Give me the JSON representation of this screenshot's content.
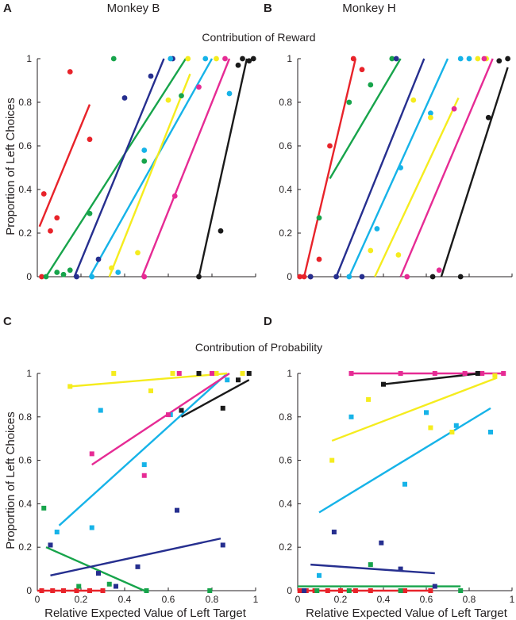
{
  "figure": {
    "panel_letters": [
      "A",
      "B",
      "C",
      "D"
    ],
    "monkey_titles": [
      "Monkey B",
      "Monkey H"
    ],
    "section_titles": [
      "Contribution of Reward",
      "Contribution of Probability"
    ],
    "ylabel": "Proportion of Left  Choices",
    "xlabel": "Relative Expected Value of Left Target",
    "yticks": [
      "0",
      "0.2",
      "0.4",
      "0.6",
      "0.8",
      "1"
    ],
    "xticks": [
      "0",
      "0.2",
      "0.4",
      "0.6",
      "0.8",
      "1"
    ],
    "colors": {
      "red": "#e8232a",
      "green": "#17a44b",
      "navy": "#262f8f",
      "cyan": "#16b3e8",
      "yellow": "#f5ec1e",
      "magenta": "#e62b94",
      "black": "#1a1a1a"
    }
  },
  "chart_data": [
    {
      "panel": "A",
      "type": "scatter",
      "marker": "circle",
      "title": "Monkey B",
      "xlim": [
        0,
        1
      ],
      "ylim": [
        0,
        1
      ],
      "series": [
        {
          "color": "red",
          "points": [
            [
              0.02,
              0
            ],
            [
              0.03,
              0.38
            ],
            [
              0.06,
              0.21
            ],
            [
              0.09,
              0.27
            ],
            [
              0.15,
              0.94
            ],
            [
              0.24,
              0.63
            ]
          ],
          "fit": [
            [
              0.01,
              0.23
            ],
            [
              0.24,
              0.79
            ]
          ]
        },
        {
          "color": "green",
          "points": [
            [
              0.04,
              0
            ],
            [
              0.09,
              0.02
            ],
            [
              0.12,
              0.01
            ],
            [
              0.15,
              0.03
            ],
            [
              0.24,
              0.29
            ],
            [
              0.35,
              1.0
            ],
            [
              0.49,
              0.53
            ],
            [
              0.66,
              0.83
            ]
          ],
          "fit": [
            [
              0.04,
              0
            ],
            [
              0.68,
              1.0
            ]
          ]
        },
        {
          "color": "navy",
          "points": [
            [
              0.18,
              0
            ],
            [
              0.28,
              0.08
            ],
            [
              0.4,
              0.82
            ],
            [
              0.52,
              0.92
            ],
            [
              0.62,
              1.0
            ]
          ],
          "fit": [
            [
              0.17,
              0
            ],
            [
              0.58,
              1.0
            ]
          ]
        },
        {
          "color": "cyan",
          "points": [
            [
              0.25,
              0
            ],
            [
              0.37,
              0.02
            ],
            [
              0.49,
              0.58
            ],
            [
              0.61,
              1.0
            ],
            [
              0.77,
              1.0
            ],
            [
              0.88,
              0.84
            ]
          ],
          "fit": [
            [
              0.24,
              0
            ],
            [
              0.8,
              1.0
            ]
          ]
        },
        {
          "color": "yellow",
          "points": [
            [
              0.34,
              0.04
            ],
            [
              0.46,
              0.11
            ],
            [
              0.6,
              0.81
            ],
            [
              0.69,
              1.0
            ],
            [
              0.82,
              1.0
            ]
          ],
          "fit": [
            [
              0.33,
              0
            ],
            [
              0.7,
              0.93
            ]
          ]
        },
        {
          "color": "magenta",
          "points": [
            [
              0.49,
              0
            ],
            [
              0.63,
              0.37
            ],
            [
              0.74,
              0.87
            ],
            [
              0.86,
              1.0
            ]
          ],
          "fit": [
            [
              0.48,
              0
            ],
            [
              0.88,
              1.0
            ]
          ]
        },
        {
          "color": "black",
          "points": [
            [
              0.74,
              0
            ],
            [
              0.84,
              0.21
            ],
            [
              0.92,
              0.97
            ],
            [
              0.94,
              1.0
            ],
            [
              0.97,
              0.99
            ],
            [
              0.99,
              1.0
            ]
          ],
          "fit": [
            [
              0.74,
              0
            ],
            [
              0.96,
              1.0
            ]
          ]
        }
      ]
    },
    {
      "panel": "B",
      "type": "scatter",
      "marker": "circle",
      "title": "Monkey H",
      "xlim": [
        0,
        1
      ],
      "ylim": [
        0,
        1
      ],
      "series": [
        {
          "color": "red",
          "points": [
            [
              0.01,
              0
            ],
            [
              0.03,
              0
            ],
            [
              0.06,
              0
            ],
            [
              0.1,
              0.08
            ],
            [
              0.15,
              0.6
            ],
            [
              0.26,
              1.0
            ],
            [
              0.3,
              0.95
            ]
          ],
          "fit": [
            [
              0.03,
              0
            ],
            [
              0.27,
              1.0
            ]
          ]
        },
        {
          "color": "green",
          "points": [
            [
              0.1,
              0.27
            ],
            [
              0.24,
              0.8
            ],
            [
              0.34,
              0.88
            ],
            [
              0.44,
              1.0
            ]
          ],
          "fit": [
            [
              0.15,
              0.45
            ],
            [
              0.48,
              1.0
            ]
          ]
        },
        {
          "color": "navy",
          "points": [
            [
              0.06,
              0
            ],
            [
              0.18,
              0
            ],
            [
              0.3,
              0
            ],
            [
              0.46,
              1.0
            ]
          ],
          "fit": [
            [
              0.18,
              0
            ],
            [
              0.59,
              1.0
            ]
          ]
        },
        {
          "color": "cyan",
          "points": [
            [
              0.24,
              0
            ],
            [
              0.37,
              0.22
            ],
            [
              0.48,
              0.5
            ],
            [
              0.62,
              0.75
            ],
            [
              0.76,
              1.0
            ],
            [
              0.8,
              1.0
            ]
          ],
          "fit": [
            [
              0.24,
              0
            ],
            [
              0.7,
              1.0
            ]
          ]
        },
        {
          "color": "yellow",
          "points": [
            [
              0.34,
              0.12
            ],
            [
              0.47,
              0.1
            ],
            [
              0.54,
              0.81
            ],
            [
              0.62,
              0.73
            ],
            [
              0.84,
              1.0
            ],
            [
              0.88,
              1.0
            ]
          ],
          "fit": [
            [
              0.36,
              0
            ],
            [
              0.75,
              0.82
            ]
          ]
        },
        {
          "color": "magenta",
          "points": [
            [
              0.51,
              0
            ],
            [
              0.66,
              0.03
            ],
            [
              0.73,
              0.77
            ],
            [
              0.87,
              1.0
            ]
          ],
          "fit": [
            [
              0.48,
              0
            ],
            [
              0.91,
              1.0
            ]
          ]
        },
        {
          "color": "black",
          "points": [
            [
              0.63,
              0
            ],
            [
              0.76,
              0
            ],
            [
              0.89,
              0.73
            ],
            [
              0.94,
              0.99
            ],
            [
              0.98,
              1.0
            ]
          ],
          "fit": [
            [
              0.67,
              0
            ],
            [
              0.98,
              0.96
            ]
          ]
        }
      ]
    },
    {
      "panel": "C",
      "type": "scatter",
      "marker": "square",
      "xlim": [
        0,
        1
      ],
      "ylim": [
        0,
        1
      ],
      "series": [
        {
          "color": "red",
          "points": [
            [
              0.02,
              0
            ],
            [
              0.07,
              0
            ],
            [
              0.12,
              0
            ],
            [
              0.18,
              0
            ],
            [
              0.24,
              0
            ],
            [
              0.3,
              0
            ]
          ],
          "fit": [
            [
              0.0,
              0.0
            ],
            [
              0.3,
              0.0
            ]
          ]
        },
        {
          "color": "green",
          "points": [
            [
              0.03,
              0.38
            ],
            [
              0.06,
              0.21
            ],
            [
              0.19,
              0.02
            ],
            [
              0.33,
              0.03
            ],
            [
              0.5,
              0
            ],
            [
              0.79,
              0
            ]
          ],
          "fit": [
            [
              0.04,
              0.2
            ],
            [
              0.49,
              0.0
            ]
          ]
        },
        {
          "color": "navy",
          "points": [
            [
              0.06,
              0.21
            ],
            [
              0.28,
              0.08
            ],
            [
              0.36,
              0.02
            ],
            [
              0.46,
              0.11
            ],
            [
              0.64,
              0.37
            ],
            [
              0.85,
              0.21
            ]
          ],
          "fit": [
            [
              0.06,
              0.07
            ],
            [
              0.84,
              0.24
            ]
          ]
        },
        {
          "color": "cyan",
          "points": [
            [
              0.09,
              0.27
            ],
            [
              0.25,
              0.29
            ],
            [
              0.29,
              0.83
            ],
            [
              0.49,
              0.58
            ],
            [
              0.61,
              0.81
            ],
            [
              0.87,
              0.97
            ]
          ],
          "fit": [
            [
              0.1,
              0.3
            ],
            [
              0.87,
              1.0
            ]
          ]
        },
        {
          "color": "yellow",
          "points": [
            [
              0.15,
              0.94
            ],
            [
              0.35,
              1.0
            ],
            [
              0.52,
              0.92
            ],
            [
              0.62,
              1.0
            ],
            [
              0.82,
              1.0
            ],
            [
              0.94,
              1.0
            ]
          ],
          "fit": [
            [
              0.15,
              0.94
            ],
            [
              0.87,
              1.0
            ]
          ]
        },
        {
          "color": "magenta",
          "points": [
            [
              0.25,
              0.63
            ],
            [
              0.49,
              0.53
            ],
            [
              0.6,
              0.81
            ],
            [
              0.65,
              1.0
            ],
            [
              0.8,
              1.0
            ]
          ],
          "fit": [
            [
              0.25,
              0.58
            ],
            [
              0.88,
              1.0
            ]
          ]
        },
        {
          "color": "black",
          "points": [
            [
              0.66,
              0.83
            ],
            [
              0.74,
              1.0
            ],
            [
              0.85,
              0.84
            ],
            [
              0.92,
              0.97
            ],
            [
              0.97,
              1.0
            ]
          ],
          "fit": [
            [
              0.66,
              0.8
            ],
            [
              0.97,
              0.97
            ]
          ]
        }
      ]
    },
    {
      "panel": "D",
      "type": "scatter",
      "marker": "square",
      "xlim": [
        0,
        1
      ],
      "ylim": [
        0,
        1
      ],
      "series": [
        {
          "color": "red",
          "points": [
            [
              0.01,
              0
            ],
            [
              0.04,
              0
            ],
            [
              0.08,
              0
            ],
            [
              0.14,
              0
            ],
            [
              0.2,
              0
            ],
            [
              0.27,
              0
            ],
            [
              0.34,
              0
            ],
            [
              0.5,
              0
            ],
            [
              0.62,
              0
            ]
          ],
          "fit": [
            [
              0.0,
              0.0
            ],
            [
              0.62,
              0.0
            ]
          ]
        },
        {
          "color": "green",
          "points": [
            [
              0.09,
              0
            ],
            [
              0.24,
              0
            ],
            [
              0.34,
              0.12
            ],
            [
              0.48,
              0
            ],
            [
              0.76,
              0
            ]
          ],
          "fit": [
            [
              0.0,
              0.02
            ],
            [
              0.76,
              0.02
            ]
          ]
        },
        {
          "color": "navy",
          "points": [
            [
              0.03,
              0
            ],
            [
              0.17,
              0.27
            ],
            [
              0.39,
              0.22
            ],
            [
              0.48,
              0.1
            ],
            [
              0.64,
              0.02
            ]
          ],
          "fit": [
            [
              0.06,
              0.12
            ],
            [
              0.64,
              0.08
            ]
          ]
        },
        {
          "color": "cyan",
          "points": [
            [
              0.1,
              0.07
            ],
            [
              0.25,
              0.8
            ],
            [
              0.5,
              0.49
            ],
            [
              0.6,
              0.82
            ],
            [
              0.74,
              0.76
            ],
            [
              0.9,
              0.73
            ]
          ],
          "fit": [
            [
              0.1,
              0.36
            ],
            [
              0.9,
              0.84
            ]
          ]
        },
        {
          "color": "yellow",
          "points": [
            [
              0.16,
              0.6
            ],
            [
              0.33,
              0.88
            ],
            [
              0.62,
              0.75
            ],
            [
              0.72,
              0.73
            ],
            [
              0.92,
              0.99
            ]
          ],
          "fit": [
            [
              0.16,
              0.69
            ],
            [
              0.93,
              0.98
            ]
          ]
        },
        {
          "color": "magenta",
          "points": [
            [
              0.25,
              1.0
            ],
            [
              0.48,
              1.0
            ],
            [
              0.64,
              1.0
            ],
            [
              0.78,
              1.0
            ],
            [
              0.86,
              1.0
            ],
            [
              0.96,
              1.0
            ]
          ],
          "fit": [
            [
              0.25,
              1.0
            ],
            [
              0.97,
              1.0
            ]
          ]
        },
        {
          "color": "black",
          "points": [
            [
              0.4,
              0.95
            ],
            [
              0.84,
              1.0
            ]
          ],
          "fit": [
            [
              0.4,
              0.95
            ],
            [
              0.85,
              1.0
            ]
          ]
        }
      ]
    }
  ]
}
